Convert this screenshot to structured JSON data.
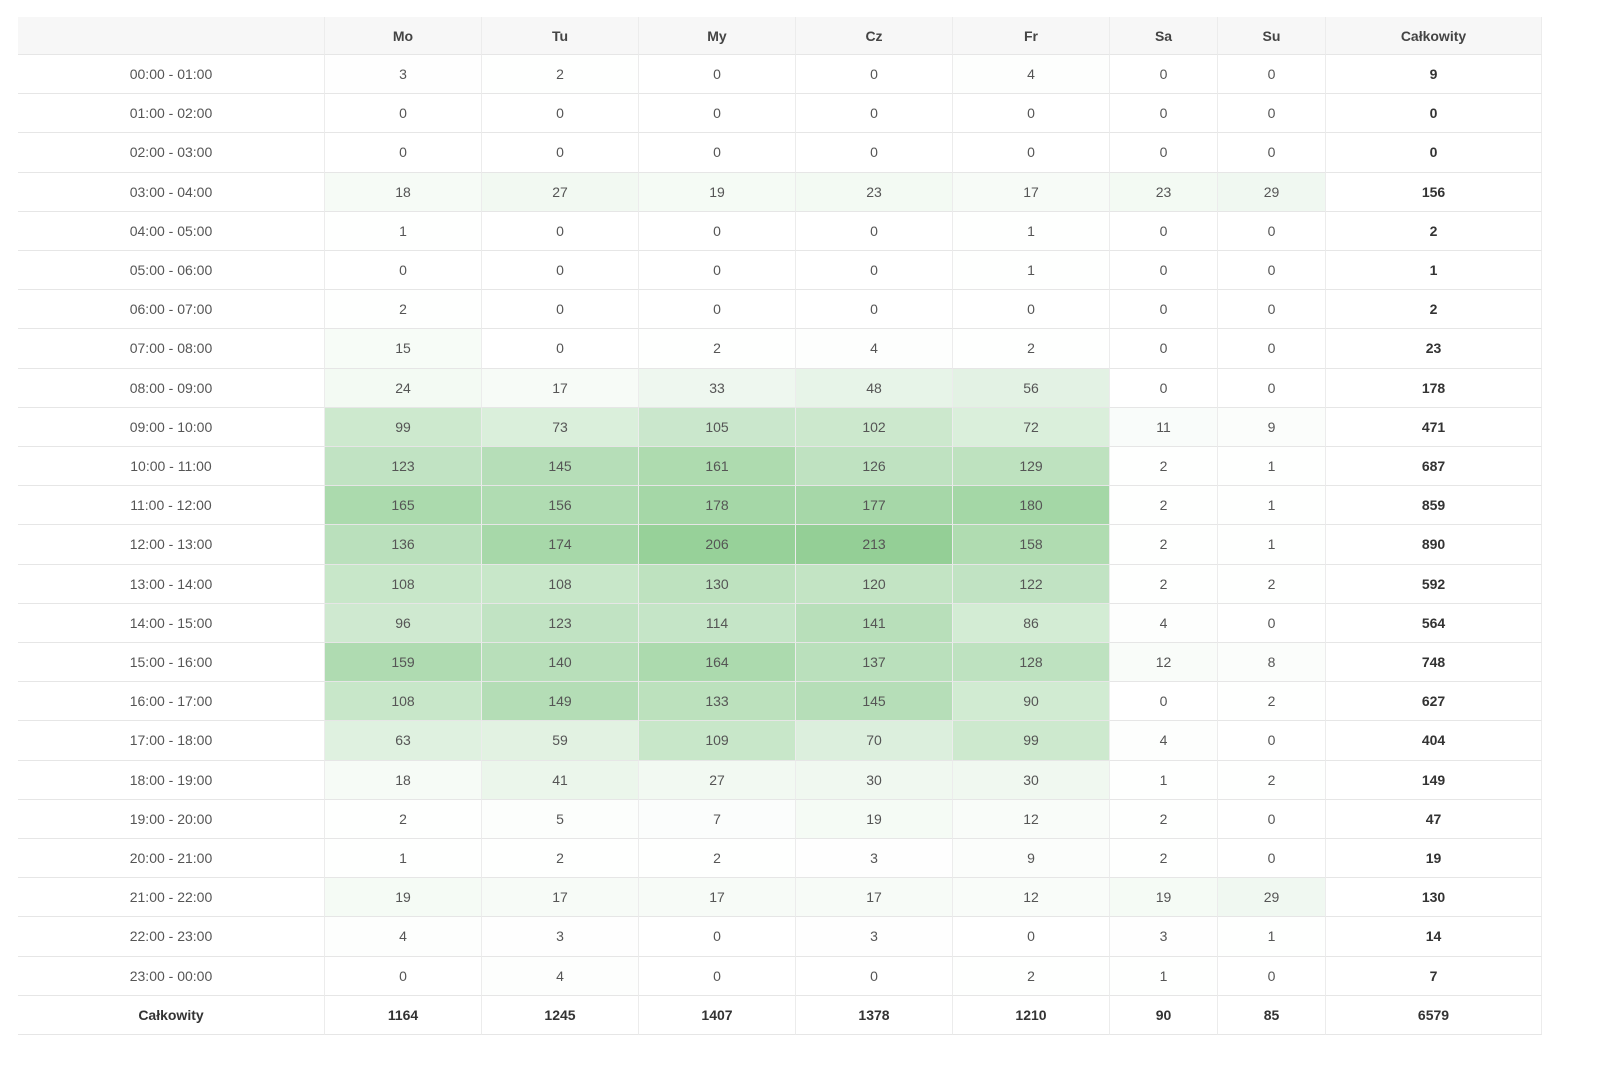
{
  "table": {
    "columns": [
      "Mo",
      "Tu",
      "My",
      "Cz",
      "Fr",
      "Sa",
      "Su"
    ],
    "total_label": "Całkowity",
    "rows": [
      {
        "label": "00:00 - 01:00",
        "values": [
          3,
          2,
          0,
          0,
          4,
          0,
          0
        ],
        "total": 9
      },
      {
        "label": "01:00 - 02:00",
        "values": [
          0,
          0,
          0,
          0,
          0,
          0,
          0
        ],
        "total": 0
      },
      {
        "label": "02:00 - 03:00",
        "values": [
          0,
          0,
          0,
          0,
          0,
          0,
          0
        ],
        "total": 0
      },
      {
        "label": "03:00 - 04:00",
        "values": [
          18,
          27,
          19,
          23,
          17,
          23,
          29
        ],
        "total": 156
      },
      {
        "label": "04:00 - 05:00",
        "values": [
          1,
          0,
          0,
          0,
          1,
          0,
          0
        ],
        "total": 2
      },
      {
        "label": "05:00 - 06:00",
        "values": [
          0,
          0,
          0,
          0,
          1,
          0,
          0
        ],
        "total": 1
      },
      {
        "label": "06:00 - 07:00",
        "values": [
          2,
          0,
          0,
          0,
          0,
          0,
          0
        ],
        "total": 2
      },
      {
        "label": "07:00 - 08:00",
        "values": [
          15,
          0,
          2,
          4,
          2,
          0,
          0
        ],
        "total": 23
      },
      {
        "label": "08:00 - 09:00",
        "values": [
          24,
          17,
          33,
          48,
          56,
          0,
          0
        ],
        "total": 178
      },
      {
        "label": "09:00 - 10:00",
        "values": [
          99,
          73,
          105,
          102,
          72,
          11,
          9
        ],
        "total": 471
      },
      {
        "label": "10:00 - 11:00",
        "values": [
          123,
          145,
          161,
          126,
          129,
          2,
          1
        ],
        "total": 687
      },
      {
        "label": "11:00 - 12:00",
        "values": [
          165,
          156,
          178,
          177,
          180,
          2,
          1
        ],
        "total": 859
      },
      {
        "label": "12:00 - 13:00",
        "values": [
          136,
          174,
          206,
          213,
          158,
          2,
          1
        ],
        "total": 890
      },
      {
        "label": "13:00 - 14:00",
        "values": [
          108,
          108,
          130,
          120,
          122,
          2,
          2
        ],
        "total": 592
      },
      {
        "label": "14:00 - 15:00",
        "values": [
          96,
          123,
          114,
          141,
          86,
          4,
          0
        ],
        "total": 564
      },
      {
        "label": "15:00 - 16:00",
        "values": [
          159,
          140,
          164,
          137,
          128,
          12,
          8
        ],
        "total": 748
      },
      {
        "label": "16:00 - 17:00",
        "values": [
          108,
          149,
          133,
          145,
          90,
          0,
          2
        ],
        "total": 627
      },
      {
        "label": "17:00 - 18:00",
        "values": [
          63,
          59,
          109,
          70,
          99,
          4,
          0
        ],
        "total": 404
      },
      {
        "label": "18:00 - 19:00",
        "values": [
          18,
          41,
          27,
          30,
          30,
          1,
          2
        ],
        "total": 149
      },
      {
        "label": "19:00 - 20:00",
        "values": [
          2,
          5,
          7,
          19,
          12,
          2,
          0
        ],
        "total": 47
      },
      {
        "label": "20:00 - 21:00",
        "values": [
          1,
          2,
          2,
          3,
          9,
          2,
          0
        ],
        "total": 19
      },
      {
        "label": "21:00 - 22:00",
        "values": [
          19,
          17,
          17,
          17,
          12,
          19,
          29
        ],
        "total": 130
      },
      {
        "label": "22:00 - 23:00",
        "values": [
          4,
          3,
          0,
          3,
          0,
          3,
          1
        ],
        "total": 14
      },
      {
        "label": "23:00 - 00:00",
        "values": [
          0,
          4,
          0,
          0,
          2,
          1,
          0
        ],
        "total": 7
      }
    ],
    "footer": {
      "label": "Całkowity",
      "values": [
        1164,
        1245,
        1407,
        1378,
        1210,
        90,
        85
      ],
      "total": 6579
    }
  }
}
